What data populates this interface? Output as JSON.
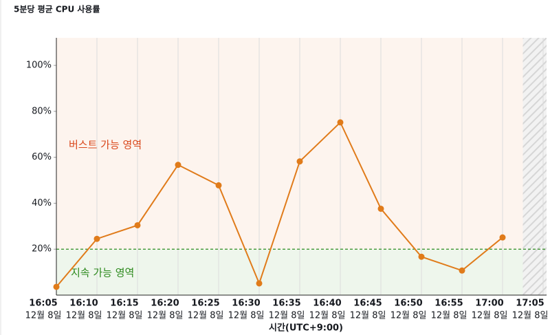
{
  "chart_data": {
    "type": "line",
    "title": "5분당 평균 CPU 사용률",
    "categories": [
      "16:05",
      "16:10",
      "16:15",
      "16:20",
      "16:25",
      "16:30",
      "16:35",
      "16:40",
      "16:45",
      "16:50",
      "16:55",
      "17:00",
      "17:05"
    ],
    "category_dates": [
      "12월 8일",
      "12월 8일",
      "12월 8일",
      "12월 8일",
      "12월 8일",
      "12월 8일",
      "12월 8일",
      "12월 8일",
      "12월 8일",
      "12월 8일",
      "12월 8일",
      "12월 8일",
      "12월 8일"
    ],
    "x_label": "시간(UTC+9:00)",
    "series": [
      {
        "name": "CPU",
        "color": "#e07b1a",
        "values": [
          3.6,
          24.5,
          30.4,
          56.7,
          47.8,
          5.1,
          58.2,
          75.2,
          37.6,
          16.7,
          10.7,
          25.1,
          null
        ]
      }
    ],
    "ylim": [
      0,
      112
    ],
    "yticks": [
      {
        "value": 20,
        "label": "20%"
      },
      {
        "value": 40,
        "label": "40%"
      },
      {
        "value": 60,
        "label": "60%"
      },
      {
        "value": 80,
        "label": "80%"
      },
      {
        "value": 100,
        "label": "100%"
      }
    ],
    "threshold": 20,
    "threshold_color": "#2d8a1e",
    "burst_label": "버스트 가능 영역",
    "burst_color": "#d9471b",
    "sustain_label": "지속 가능 영역",
    "sustain_color": "#2d8a1e",
    "grid": true
  }
}
